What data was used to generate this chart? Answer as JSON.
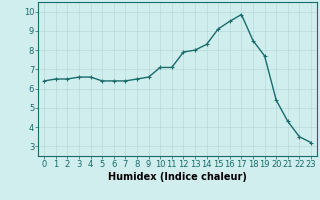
{
  "x": [
    0,
    1,
    2,
    3,
    4,
    5,
    6,
    7,
    8,
    9,
    10,
    11,
    12,
    13,
    14,
    15,
    16,
    17,
    18,
    19,
    20,
    21,
    22,
    23
  ],
  "y": [
    6.4,
    6.5,
    6.5,
    6.6,
    6.6,
    6.4,
    6.4,
    6.4,
    6.5,
    6.6,
    7.1,
    7.1,
    7.9,
    8.0,
    8.3,
    9.1,
    9.5,
    9.85,
    8.5,
    7.7,
    5.4,
    4.3,
    3.5,
    3.2
  ],
  "line_color": "#1a6b6b",
  "marker": "+",
  "marker_size": 3,
  "bg_color": "#d0eeee",
  "grid_color": "#b8dada",
  "xlabel": "Humidex (Indice chaleur)",
  "xlim": [
    -0.5,
    23.5
  ],
  "ylim": [
    2.5,
    10.5
  ],
  "xticks": [
    0,
    1,
    2,
    3,
    4,
    5,
    6,
    7,
    8,
    9,
    10,
    11,
    12,
    13,
    14,
    15,
    16,
    17,
    18,
    19,
    20,
    21,
    22,
    23
  ],
  "yticks": [
    3,
    4,
    5,
    6,
    7,
    8,
    9,
    10
  ],
  "xlabel_fontsize": 7,
  "tick_fontsize": 6,
  "linewidth": 1.0
}
